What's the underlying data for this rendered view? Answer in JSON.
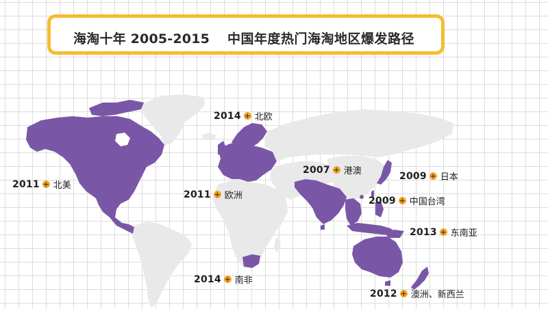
{
  "title": {
    "main": "海淘十年 2005-2015",
    "subtitle": "中国年度热门海淘地区爆发路径"
  },
  "colors": {
    "highlight": "#7a57a6",
    "land": "#e9e9e9",
    "accent": "#f2a72d",
    "frame": "#f3bd2d"
  },
  "regions": [
    {
      "id": "north-america",
      "year": "2011",
      "name": "北美"
    },
    {
      "id": "europe",
      "year": "2011",
      "name": "欧洲"
    },
    {
      "id": "northern-europe",
      "year": "2014",
      "name": "北欧"
    },
    {
      "id": "hong-kong-macau",
      "year": "2007",
      "name": "港澳"
    },
    {
      "id": "japan",
      "year": "2009",
      "name": "日本"
    },
    {
      "id": "taiwan",
      "year": "2009",
      "name": "中国台湾"
    },
    {
      "id": "southeast-asia",
      "year": "2013",
      "name": "东南亚"
    },
    {
      "id": "south-africa",
      "year": "2014",
      "name": "南非"
    },
    {
      "id": "australia-nz",
      "year": "2012",
      "name": "澳洲、新西兰"
    }
  ],
  "marker_symbol": "+"
}
